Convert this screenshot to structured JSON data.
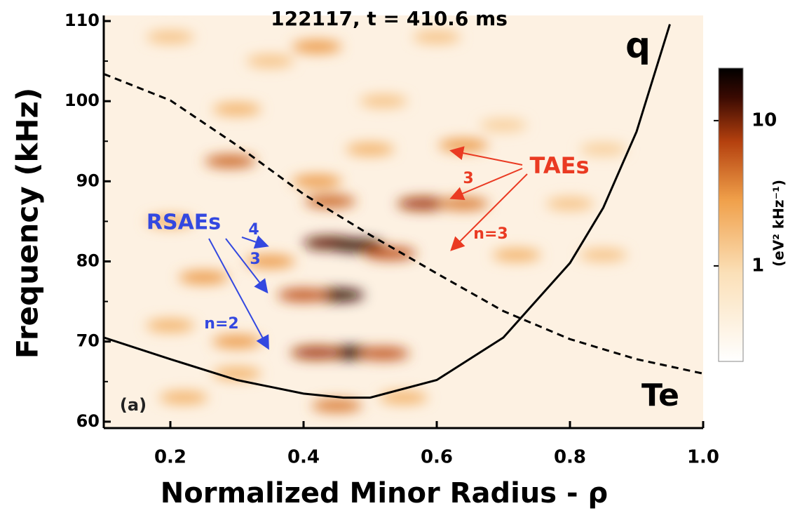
{
  "chart_data": {
    "type": "heatmap",
    "title": "122117, t = 410.6 ms",
    "x_label": "Normalized Minor Radius -  ρ",
    "y_label": "Frequency (kHz)",
    "xlim": [
      0.1,
      1.0
    ],
    "xticks": [
      0.2,
      0.4,
      0.6,
      0.8,
      {
        "value": 1.0,
        "label": "1.0"
      }
    ],
    "ylim": [
      59.2,
      110.7
    ],
    "yticks": [
      60,
      70,
      80,
      90,
      100,
      110
    ],
    "spots": {
      "x": [
        0.44,
        0.48,
        0.53,
        0.45,
        0.4,
        0.47,
        0.42,
        0.52,
        0.58,
        0.64,
        0.44,
        0.29,
        0.64,
        0.42,
        0.35,
        0.25,
        0.2,
        0.3,
        0.5,
        0.72,
        0.85,
        0.8,
        0.85,
        0.3,
        0.2,
        0.45,
        0.22,
        0.55,
        0.35,
        0.2,
        0.7,
        0.52,
        0.6,
        0.3,
        0.42
      ],
      "y": [
        82.3,
        82,
        81,
        75.8,
        75.8,
        68.6,
        68.6,
        68.5,
        87.2,
        87.2,
        87.5,
        92.5,
        94.5,
        106.8,
        80,
        78,
        85,
        99,
        94,
        80.8,
        80.8,
        87.2,
        94,
        70,
        72,
        62,
        63,
        63,
        105,
        108,
        97,
        100,
        108,
        66,
        90
      ],
      "values": [
        12,
        15,
        6,
        15,
        6,
        20,
        8,
        6,
        8,
        4,
        5,
        5,
        3,
        3,
        3,
        3,
        2,
        2,
        2,
        2,
        1.5,
        1.5,
        1.2,
        3,
        2,
        4,
        2,
        2,
        1.5,
        1.5,
        1.2,
        1.5,
        1.5,
        2,
        3
      ]
    },
    "colorbar": {
      "label": "(eV² kHz⁻¹)",
      "log": true,
      "lim": [
        0.22,
        23
      ],
      "ticks": [
        1,
        10
      ]
    },
    "series": [
      {
        "name": "q",
        "color": "#000000",
        "dash": false,
        "x": [
          0.1,
          0.2,
          0.3,
          0.4,
          0.46,
          0.5,
          0.6,
          0.7,
          0.8,
          0.85,
          0.9,
          0.95
        ],
        "values": [
          70.5,
          67.8,
          65.2,
          63.5,
          63.0,
          63.0,
          65.2,
          70.5,
          79.8,
          86.7,
          96.2,
          109.6
        ]
      },
      {
        "name": "Te",
        "color": "#000000",
        "dash": true,
        "x": [
          0.1,
          0.2,
          0.3,
          0.4,
          0.5,
          0.6,
          0.7,
          0.8,
          0.9,
          1.0
        ],
        "values": [
          103.4,
          100.1,
          94.5,
          88.4,
          83.3,
          78.5,
          73.8,
          70.3,
          67.8,
          66.0
        ]
      }
    ],
    "annotations": [
      {
        "text": "(a)",
        "color": "#222222"
      },
      {
        "text": "RSAEs",
        "color": "#3348e0"
      },
      {
        "text": "4",
        "color": "#3348e0"
      },
      {
        "text": "3",
        "color": "#3348e0"
      },
      {
        "text": "n=2",
        "color": "#3348e0"
      },
      {
        "text": "TAEs",
        "color": "#ea3a22"
      },
      {
        "text": "3",
        "color": "#ea3a22"
      },
      {
        "text": "n=3",
        "color": "#ea3a22"
      }
    ]
  }
}
